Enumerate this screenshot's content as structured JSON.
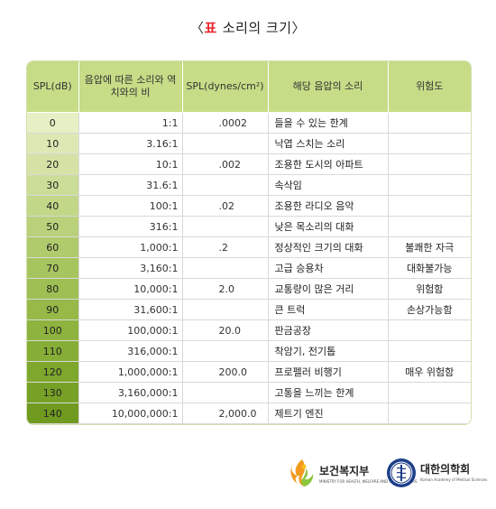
{
  "title": {
    "open": "〈",
    "tag": "표",
    "text": "소리의 크기",
    "close": "〉"
  },
  "table": {
    "headers": [
      "SPL(dB)",
      "음압에 따른 소리와 역치와의 비",
      "SPL(dynes/cm²)",
      "해당 음압의 소리",
      "위험도"
    ],
    "rows": [
      {
        "spl": "0",
        "ratio": "1:1",
        "dynes": ".0002",
        "sound": "들을 수 있는 한계",
        "risk": "",
        "shade": "#e6f0c4"
      },
      {
        "spl": "10",
        "ratio": "3.16:1",
        "dynes": "",
        "sound": "낙엽 스치는 소리",
        "risk": "",
        "shade": "#dde9b4"
      },
      {
        "spl": "20",
        "ratio": "10:1",
        "dynes": ".002",
        "sound": "조용한 도시의 아파트",
        "risk": "",
        "shade": "#d4e3a5"
      },
      {
        "spl": "30",
        "ratio": "31.6:1",
        "dynes": "",
        "sound": "속삭임",
        "risk": "",
        "shade": "#cbdd96"
      },
      {
        "spl": "40",
        "ratio": "100:1",
        "dynes": ".02",
        "sound": "조용한 라디오 음악",
        "risk": "",
        "shade": "#c2d788"
      },
      {
        "spl": "50",
        "ratio": "316:1",
        "dynes": "",
        "sound": "낮은 목소리의 대화",
        "risk": "",
        "shade": "#b9d17a"
      },
      {
        "spl": "60",
        "ratio": "1,000:1",
        "dynes": ".2",
        "sound": "정상적인 크기의 대화",
        "risk": "불쾌한 자극",
        "shade": "#b0cb6c"
      },
      {
        "spl": "70",
        "ratio": "3,160:1",
        "dynes": "",
        "sound": "고급 승용차",
        "risk": "대화불가능",
        "shade": "#a7c55f"
      },
      {
        "spl": "80",
        "ratio": "10,000:1",
        "dynes": "2.0",
        "sound": "교통량이 많은 거리",
        "risk": "위험함",
        "shade": "#9ebf53"
      },
      {
        "spl": "90",
        "ratio": "31,600:1",
        "dynes": "",
        "sound": "큰 트럭",
        "risk": "손상가능함",
        "shade": "#96b948"
      },
      {
        "spl": "100",
        "ratio": "100,000:1",
        "dynes": "20.0",
        "sound": "판금공장",
        "risk": "",
        "shade": "#8eb33e"
      },
      {
        "spl": "110",
        "ratio": "316,000:1",
        "dynes": "",
        "sound": "착암기, 전기톱",
        "risk": "",
        "shade": "#86ad35"
      },
      {
        "spl": "120",
        "ratio": "1,000,000:1",
        "dynes": "200.0",
        "sound": "프로펠러 비행기",
        "risk": "매우 위험함",
        "shade": "#7ea72d"
      },
      {
        "spl": "130",
        "ratio": "3,160,000:1",
        "dynes": "",
        "sound": "고통을 느끼는 한계",
        "risk": "",
        "shade": "#77a126"
      },
      {
        "spl": "140",
        "ratio": "10,000,000:1",
        "dynes": "2,000.0",
        "sound": "제트기 엔진",
        "risk": "",
        "shade": "#709b20"
      }
    ]
  },
  "logos": {
    "mohw_name": "보건복지부",
    "mohw_sub": "MINISTRY FOR HEALTH, WELFARE AND FAMILY AFFAIRS",
    "kams_name": "대한의학회",
    "kams_sub": "Korean Academy of Medical Sciences"
  },
  "colors": {
    "header_bg": "#c6dc87",
    "title_tag": "#e8232a"
  }
}
